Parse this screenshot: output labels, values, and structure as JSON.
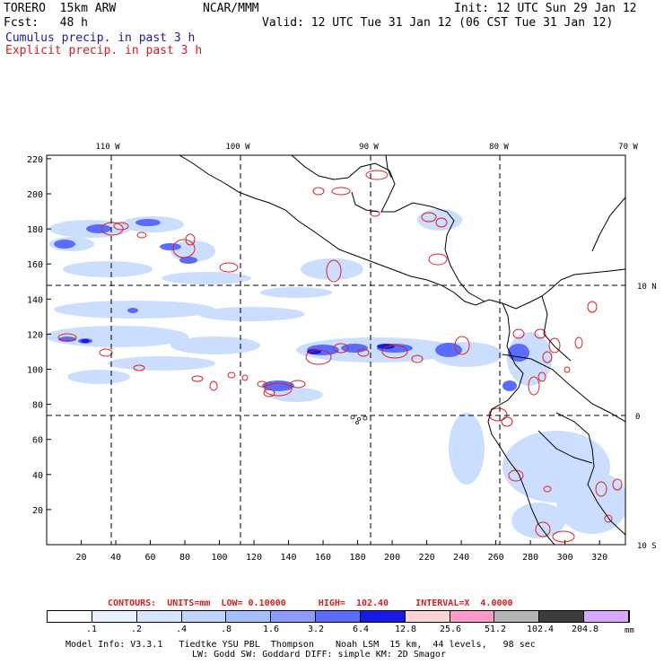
{
  "header": {
    "model": "TORERO  15km ARW",
    "center": "NCAR/MMM",
    "init": "Init: 12 UTC Sun 29 Jan 12",
    "fcst": "Fcst:   48 h",
    "valid": "Valid: 12 UTC Tue 31 Jan 12 (06 CST Tue 31 Jan 12)",
    "field1": "Cumulus precip. in past 3 h",
    "field2": "Explicit precip. in past 3 h"
  },
  "map": {
    "lon_labels": [
      "110 W",
      "100 W",
      "90 W",
      "80 W",
      "70 W"
    ],
    "lat_labels": [
      "10 N",
      "0",
      "10 S"
    ],
    "y_ticks": [
      "220",
      "200",
      "180",
      "160",
      "140",
      "120",
      "100",
      "80",
      "60",
      "40",
      "20"
    ],
    "x_ticks": [
      "20",
      "40",
      "60",
      "80",
      "100",
      "120",
      "140",
      "160",
      "180",
      "200",
      "220",
      "240",
      "260",
      "280",
      "300",
      "320"
    ],
    "y_range": [
      0,
      222
    ],
    "x_range": [
      0,
      335
    ]
  },
  "contour_info": "CONTOURS:  UNITS=mm  LOW= 0.10000      HIGH=  102.40     INTERVAL=X  4.0000",
  "colorbar": {
    "labels": [
      ".1",
      ".2",
      ".4",
      ".8",
      "1.6",
      "3.2",
      "6.4",
      "12.8",
      "25.6",
      "51.2",
      "102.4",
      "204.8"
    ],
    "unit": "mm",
    "colors": [
      "#ffffff",
      "#e8f0ff",
      "#d4e4ff",
      "#bcd4ff",
      "#a0c0ff",
      "#8c9cff",
      "#5a6cff",
      "#1818e8",
      "#ffd4d4",
      "#ff99cc",
      "#b4b4b4",
      "#3c3c3c",
      "#d8a8ff"
    ]
  },
  "footer": {
    "line1": "Model Info: V3.3.1   Tiedtke YSU PBL  Thompson    Noah LSM  15 km,  44 levels,   98 sec",
    "line2": "LW: Godd SW: Goddard DIFF: simple KM: 2D Smagor"
  }
}
